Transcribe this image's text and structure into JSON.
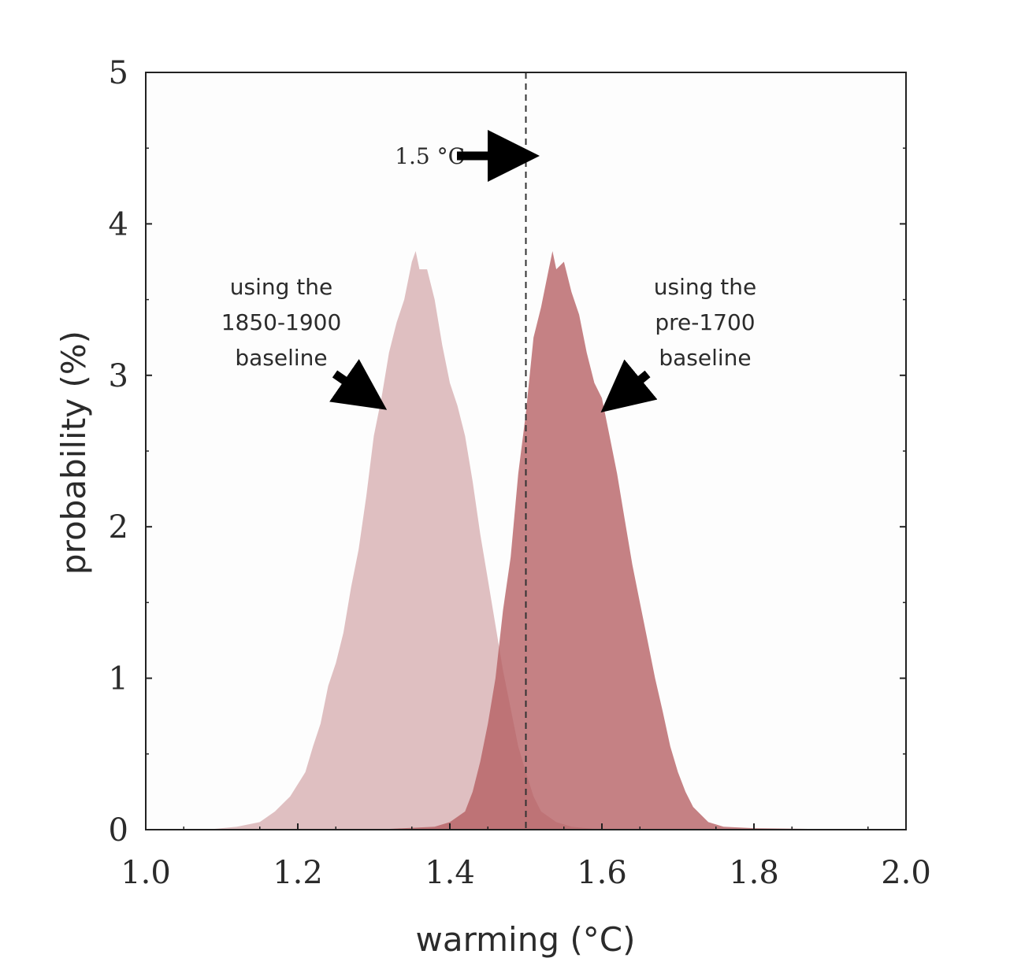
{
  "chart_data": {
    "type": "area",
    "xlabel": "warming (°C)",
    "ylabel": "probability (%)",
    "xlim": [
      1.0,
      2.0
    ],
    "ylim": [
      0,
      5
    ],
    "xticks": [
      "1.0",
      "1.2",
      "1.4",
      "1.6",
      "1.8",
      "2.0"
    ],
    "yticks": [
      "0",
      "1",
      "2",
      "3",
      "4",
      "5"
    ],
    "grid": false,
    "reference_line": {
      "x": 1.5,
      "label": "1.5 °C",
      "style": "dashed"
    },
    "series": [
      {
        "label_lines": [
          "using the",
          "1850-1900",
          "baseline"
        ],
        "color": "#dcb8ba",
        "x": [
          1.08,
          1.12,
          1.15,
          1.17,
          1.19,
          1.2,
          1.21,
          1.22,
          1.23,
          1.24,
          1.25,
          1.26,
          1.27,
          1.28,
          1.29,
          1.3,
          1.31,
          1.32,
          1.33,
          1.34,
          1.35,
          1.355,
          1.36,
          1.37,
          1.38,
          1.39,
          1.4,
          1.41,
          1.42,
          1.43,
          1.44,
          1.45,
          1.46,
          1.47,
          1.48,
          1.49,
          1.5,
          1.51,
          1.52,
          1.54,
          1.56,
          1.6
        ],
        "y": [
          0.0,
          0.02,
          0.05,
          0.12,
          0.22,
          0.3,
          0.38,
          0.55,
          0.7,
          0.95,
          1.1,
          1.3,
          1.6,
          1.85,
          2.2,
          2.6,
          2.85,
          3.15,
          3.35,
          3.5,
          3.75,
          3.82,
          3.7,
          3.7,
          3.5,
          3.2,
          2.95,
          2.8,
          2.6,
          2.3,
          1.95,
          1.65,
          1.35,
          1.05,
          0.8,
          0.55,
          0.38,
          0.22,
          0.12,
          0.05,
          0.02,
          0.0
        ]
      },
      {
        "label_lines": [
          "using the",
          "pre-1700",
          "baseline"
        ],
        "color": "#b55d62",
        "x": [
          1.3,
          1.38,
          1.4,
          1.42,
          1.43,
          1.44,
          1.45,
          1.46,
          1.47,
          1.48,
          1.49,
          1.5,
          1.51,
          1.52,
          1.53,
          1.535,
          1.54,
          1.55,
          1.56,
          1.57,
          1.58,
          1.59,
          1.6,
          1.61,
          1.62,
          1.63,
          1.64,
          1.65,
          1.66,
          1.67,
          1.68,
          1.69,
          1.7,
          1.71,
          1.72,
          1.73,
          1.74,
          1.76,
          1.8,
          1.95
        ],
        "y": [
          0.0,
          0.02,
          0.05,
          0.12,
          0.25,
          0.45,
          0.7,
          1.0,
          1.45,
          1.8,
          2.35,
          2.75,
          3.25,
          3.45,
          3.7,
          3.82,
          3.7,
          3.75,
          3.55,
          3.4,
          3.15,
          2.95,
          2.85,
          2.6,
          2.35,
          2.05,
          1.75,
          1.5,
          1.25,
          1.0,
          0.78,
          0.55,
          0.38,
          0.25,
          0.15,
          0.1,
          0.05,
          0.02,
          0.01,
          0.0
        ]
      }
    ]
  }
}
